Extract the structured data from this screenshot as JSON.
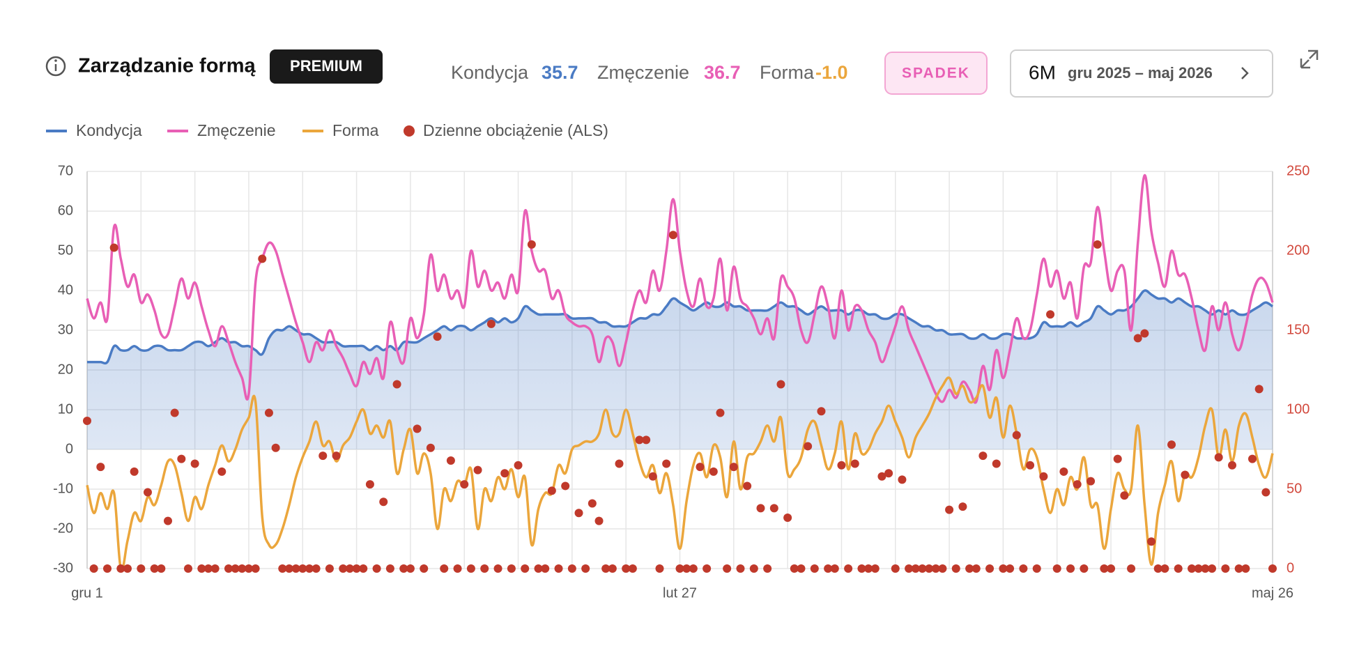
{
  "header": {
    "title": "Zarządzanie formą",
    "badge": "PREMIUM",
    "stats": [
      {
        "label": "Kondycja",
        "value": 35.7,
        "color": "#4a7bc4"
      },
      {
        "label": "Zmęczenie",
        "value": 36.7,
        "color": "#e85fb5"
      },
      {
        "label": "Forma",
        "value": {
          "value": -1,
          "label": "-1.0"
        },
        "color": "#eba63c"
      }
    ],
    "trend": "SPADEK",
    "range": {
      "period": "6M",
      "label": "gru 2025 – maj 2026"
    }
  },
  "chart_data": {
    "type": "line",
    "grid": true,
    "categories": [
      "gru 1",
      null,
      null,
      null,
      null,
      null,
      null,
      null,
      null,
      null,
      null,
      null,
      null,
      null,
      null,
      null,
      null,
      null,
      null,
      null,
      null,
      null,
      null,
      null,
      null,
      null,
      null,
      null,
      null,
      null,
      null,
      null,
      null,
      null,
      null,
      null,
      null,
      null,
      null,
      null,
      null,
      null,
      null,
      null,
      null,
      null,
      null,
      null,
      null,
      null,
      null,
      null,
      null,
      null,
      null,
      null,
      null,
      null,
      null,
      null,
      null,
      null,
      null,
      null,
      null,
      null,
      null,
      null,
      null,
      null,
      null,
      null,
      null,
      null,
      null,
      null,
      null,
      null,
      null,
      null,
      null,
      null,
      null,
      null,
      null,
      null,
      null,
      null,
      "lut 27",
      null,
      null,
      null,
      null,
      null,
      null,
      null,
      null,
      null,
      null,
      null,
      null,
      null,
      null,
      null,
      null,
      null,
      null,
      null,
      null,
      null,
      null,
      null,
      null,
      null,
      null,
      null,
      null,
      null,
      null,
      null,
      null,
      null,
      null,
      null,
      null,
      null,
      null,
      null,
      null,
      null,
      null,
      null,
      null,
      null,
      null,
      null,
      null,
      null,
      null,
      null,
      null,
      null,
      null,
      null,
      null,
      null,
      null,
      null,
      null,
      null,
      null,
      null,
      null,
      null,
      null,
      null,
      null,
      null,
      null,
      null,
      null,
      null,
      null,
      null,
      null,
      null,
      null,
      null,
      null,
      null,
      null,
      null,
      null,
      null,
      null,
      null,
      "maj 26"
    ],
    "ylim": [
      -30,
      70
    ],
    "yticks": [
      -30,
      -20,
      -10,
      0,
      10,
      20,
      30,
      40,
      50,
      60,
      70
    ],
    "y2lim": [
      0,
      250
    ],
    "y2ticks": [
      0,
      50,
      100,
      150,
      200,
      250
    ],
    "series": [
      {
        "name": "Kondycja",
        "color": "#4a7bc4",
        "fill": true,
        "values": [
          22,
          22,
          22,
          22,
          26,
          25,
          25,
          26,
          25,
          25,
          26,
          26,
          25,
          25,
          25,
          26,
          27,
          27,
          26,
          27,
          28,
          27,
          27,
          26,
          26,
          25,
          24,
          28,
          30,
          30,
          31,
          30,
          29,
          29,
          28,
          27,
          27,
          27,
          26,
          26,
          26,
          26,
          25,
          26,
          25,
          26,
          25,
          27,
          27,
          27,
          28,
          29,
          30,
          31,
          30,
          31,
          31,
          30,
          31,
          32,
          33,
          32,
          33,
          32,
          33,
          36,
          35,
          34,
          34,
          34,
          34,
          34,
          33,
          33,
          33,
          33,
          32,
          32,
          31,
          31,
          31,
          32,
          33,
          33,
          34,
          34,
          36,
          38,
          37,
          36,
          35,
          36,
          37,
          36,
          36,
          37,
          36,
          36,
          35,
          35,
          35,
          35,
          36,
          37,
          36,
          36,
          35,
          34,
          35,
          36,
          35,
          35,
          35,
          34,
          35,
          35,
          34,
          34,
          33,
          33,
          34,
          34,
          33,
          32,
          31,
          31,
          30,
          30,
          29,
          29,
          29,
          28,
          28,
          29,
          28,
          28,
          29,
          29,
          28,
          28,
          28,
          29,
          32,
          31,
          31,
          31,
          32,
          31,
          32,
          33,
          36,
          35,
          34,
          35,
          35,
          36,
          38,
          40,
          39,
          38,
          38,
          37,
          38,
          37,
          36,
          36,
          35,
          34,
          35,
          34,
          35,
          34,
          34,
          35,
          36,
          37,
          36
        ]
      },
      {
        "name": "Zmęczenie",
        "color": "#e85fb5",
        "values": [
          38,
          33,
          37,
          33,
          56,
          48,
          41,
          44,
          37,
          39,
          35,
          29,
          29,
          36,
          43,
          38,
          42,
          36,
          30,
          26,
          31,
          27,
          22,
          18,
          14,
          42,
          48,
          52,
          50,
          44,
          38,
          32,
          27,
          22,
          27,
          25,
          30,
          26,
          23,
          19,
          16,
          22,
          19,
          23,
          18,
          32,
          25,
          22,
          33,
          28,
          34,
          49,
          40,
          44,
          38,
          40,
          36,
          50,
          41,
          45,
          40,
          42,
          38,
          44,
          40,
          60,
          50,
          45,
          45,
          38,
          40,
          34,
          32,
          31,
          31,
          29,
          22,
          28,
          27,
          21,
          27,
          35,
          40,
          37,
          45,
          40,
          50,
          63,
          50,
          40,
          36,
          43,
          36,
          38,
          48,
          35,
          46,
          38,
          36,
          33,
          29,
          33,
          28,
          43,
          41,
          38,
          30,
          27,
          34,
          41,
          36,
          28,
          40,
          30,
          36,
          35,
          30,
          27,
          22,
          26,
          31,
          36,
          30,
          26,
          22,
          18,
          14,
          12,
          15,
          13,
          17,
          15,
          12,
          21,
          15,
          25,
          18,
          25,
          33,
          28,
          30,
          39,
          48,
          41,
          45,
          38,
          42,
          33,
          46,
          47,
          61,
          50,
          40,
          45,
          45,
          30,
          52,
          69,
          55,
          47,
          41,
          50,
          44,
          44,
          38,
          30,
          25,
          36,
          30,
          37,
          29,
          25,
          31,
          39,
          43,
          42,
          37
        ]
      },
      {
        "name": "Forma",
        "color": "#eba63c",
        "values": [
          -9,
          -16,
          -11,
          -15,
          -11,
          -30,
          -23,
          -16,
          -18,
          -12,
          -14,
          -9,
          -3,
          -4,
          -11,
          -18,
          -12,
          -15,
          -9,
          -4,
          1,
          -3,
          0,
          5,
          8,
          12,
          -17,
          -24,
          -24,
          -20,
          -14,
          -7,
          -2,
          2,
          7,
          1,
          2,
          -3,
          1,
          3,
          7,
          10,
          4,
          6,
          3,
          7,
          -6,
          0,
          5,
          -6,
          -1,
          -6,
          -20,
          -10,
          -13,
          -8,
          -9,
          -5,
          -20,
          -10,
          -13,
          -7,
          -10,
          -5,
          -12,
          -7,
          -24,
          -15,
          -11,
          -11,
          -4,
          -6,
          0,
          1,
          2,
          2,
          4,
          10,
          4,
          4,
          10,
          4,
          -3,
          -7,
          -4,
          -11,
          -6,
          -14,
          -25,
          -13,
          -4,
          -1,
          -7,
          1,
          -2,
          -12,
          2,
          -10,
          -2,
          -1,
          2,
          6,
          2,
          8,
          -6,
          -5,
          -2,
          5,
          7,
          1,
          -5,
          -1,
          7,
          -5,
          4,
          -1,
          0,
          4,
          7,
          11,
          7,
          3,
          -2,
          3,
          6,
          9,
          13,
          16,
          18,
          14,
          16,
          12,
          13,
          16,
          8,
          13,
          3,
          11,
          4,
          -5,
          0,
          -2,
          -10,
          -16,
          -10,
          -14,
          -7,
          -10,
          -2,
          -14,
          -14,
          -25,
          -15,
          -6,
          -10,
          -10,
          6,
          -14,
          -29,
          -16,
          -9,
          -3,
          -13,
          -6,
          -7,
          -2,
          6,
          10,
          -2,
          5,
          -3,
          6,
          9,
          3,
          -4,
          -7,
          -1
        ]
      },
      {
        "name": "Dzienne obciążenie (ALS)",
        "color": "#c0392b",
        "axis": "y2",
        "marker": "dot",
        "values": [
          93,
          0,
          64,
          0,
          202,
          0,
          0,
          61,
          0,
          48,
          0,
          0,
          30,
          98,
          69,
          0,
          66,
          0,
          0,
          0,
          61,
          0,
          0,
          0,
          0,
          0,
          195,
          98,
          76,
          0,
          0,
          0,
          0,
          0,
          0,
          71,
          0,
          71,
          0,
          0,
          0,
          0,
          53,
          0,
          42,
          0,
          116,
          0,
          0,
          88,
          0,
          76,
          146,
          0,
          68,
          0,
          53,
          0,
          62,
          0,
          154,
          0,
          60,
          0,
          65,
          0,
          204,
          0,
          0,
          49,
          0,
          52,
          0,
          35,
          0,
          41,
          30,
          0,
          0,
          66,
          0,
          0,
          81,
          81,
          58,
          0,
          66,
          210,
          0,
          0,
          0,
          64,
          0,
          61,
          98,
          0,
          64,
          0,
          52,
          0,
          38,
          0,
          38,
          116,
          32,
          0,
          0,
          77,
          0,
          99,
          0,
          0,
          65,
          0,
          66,
          0,
          0,
          0,
          58,
          60,
          0,
          56,
          0,
          0,
          0,
          0,
          0,
          0,
          37,
          0,
          39,
          0,
          0,
          71,
          0,
          66,
          0,
          0,
          84,
          0,
          65,
          0,
          58,
          160,
          0,
          61,
          0,
          53,
          0,
          55,
          204,
          0,
          0,
          69,
          46,
          0,
          145,
          148,
          17,
          0,
          0,
          78,
          0,
          59,
          0,
          0,
          0,
          0,
          70,
          0,
          65,
          0,
          0,
          69,
          113,
          48,
          0
        ]
      }
    ]
  }
}
